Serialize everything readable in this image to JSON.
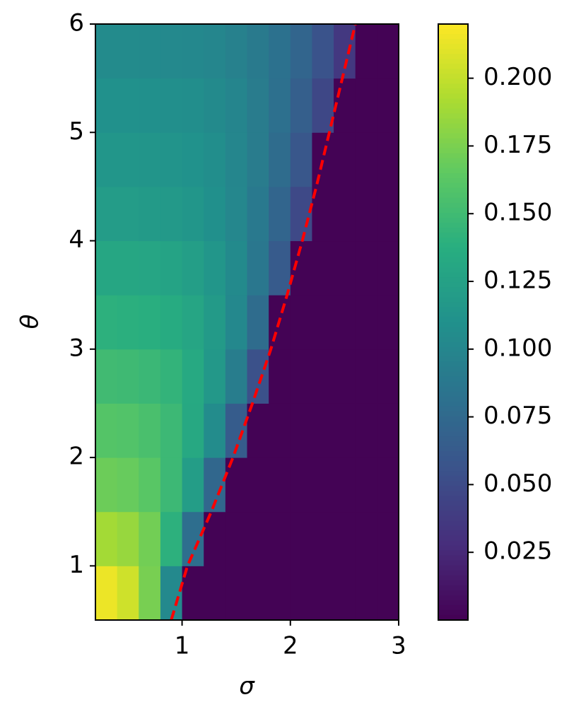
{
  "chart_data": {
    "type": "heatmap",
    "xlabel": "σ",
    "ylabel": "θ",
    "xlim": [
      0.2,
      3
    ],
    "ylim": [
      0.5,
      6
    ],
    "xticks": [
      1,
      2,
      3
    ],
    "yticks": [
      1,
      2,
      3,
      4,
      5,
      6
    ],
    "colormap": "viridis",
    "x": [
      0.3,
      0.5,
      0.7,
      0.9,
      1.1,
      1.3,
      1.5,
      1.7,
      1.9,
      2.1,
      2.3,
      2.5,
      2.7,
      2.9
    ],
    "y": [
      0.75,
      1.25,
      1.75,
      2.25,
      2.75,
      3.25,
      3.75,
      4.25,
      4.75,
      5.25,
      5.75
    ],
    "z": [
      [
        0.214,
        0.204,
        0.174,
        0.103,
        0.001,
        0.001,
        0.001,
        0.001,
        0.001,
        0.001,
        0.001,
        0.001,
        0.001,
        0.001
      ],
      [
        0.189,
        0.185,
        0.172,
        0.14,
        0.079,
        0.001,
        0.001,
        0.001,
        0.001,
        0.001,
        0.001,
        0.001,
        0.001,
        0.001
      ],
      [
        0.17,
        0.168,
        0.162,
        0.148,
        0.121,
        0.073,
        0.001,
        0.001,
        0.001,
        0.001,
        0.001,
        0.001,
        0.001,
        0.001
      ],
      [
        0.16,
        0.159,
        0.155,
        0.148,
        0.132,
        0.106,
        0.064,
        0.001,
        0.001,
        0.001,
        0.001,
        0.001,
        0.001,
        0.001
      ],
      [
        0.15,
        0.149,
        0.147,
        0.143,
        0.133,
        0.117,
        0.092,
        0.054,
        0.001,
        0.001,
        0.001,
        0.001,
        0.001,
        0.001
      ],
      [
        0.14,
        0.139,
        0.138,
        0.135,
        0.129,
        0.119,
        0.102,
        0.077,
        0.001,
        0.001,
        0.001,
        0.001,
        0.001,
        0.001
      ],
      [
        0.13,
        0.13,
        0.129,
        0.127,
        0.122,
        0.115,
        0.104,
        0.087,
        0.063,
        0.001,
        0.001,
        0.001,
        0.001,
        0.001
      ],
      [
        0.12,
        0.12,
        0.119,
        0.118,
        0.115,
        0.109,
        0.101,
        0.089,
        0.071,
        0.048,
        0.001,
        0.001,
        0.001,
        0.001
      ],
      [
        0.115,
        0.115,
        0.114,
        0.113,
        0.111,
        0.107,
        0.1,
        0.091,
        0.077,
        0.059,
        0.001,
        0.001,
        0.001,
        0.001
      ],
      [
        0.11,
        0.11,
        0.109,
        0.108,
        0.107,
        0.104,
        0.099,
        0.091,
        0.081,
        0.066,
        0.047,
        0.001,
        0.001,
        0.001
      ],
      [
        0.105,
        0.105,
        0.104,
        0.103,
        0.102,
        0.1,
        0.096,
        0.09,
        0.082,
        0.071,
        0.056,
        0.036,
        0.001,
        0.001
      ]
    ],
    "clim": [
      0,
      0.22
    ],
    "cticks": [
      0.025,
      {
        "value": 0.05,
        "label": "0.050"
      },
      0.075,
      {
        "value": 0.1,
        "label": "0.100"
      },
      0.125,
      {
        "value": 0.15,
        "label": "0.150"
      },
      0.175,
      {
        "value": 0.2,
        "label": "0.200"
      }
    ],
    "curve": {
      "color": "#ff0000",
      "style": "dashed",
      "x": [
        0.9,
        1.05,
        1.27,
        1.47,
        1.65,
        1.82,
        1.97,
        2.11,
        2.24,
        2.36,
        2.48,
        2.6
      ],
      "y": [
        0.5,
        1,
        1.5,
        2,
        2.5,
        3,
        3.5,
        4,
        4.5,
        5,
        5.5,
        6
      ]
    }
  }
}
